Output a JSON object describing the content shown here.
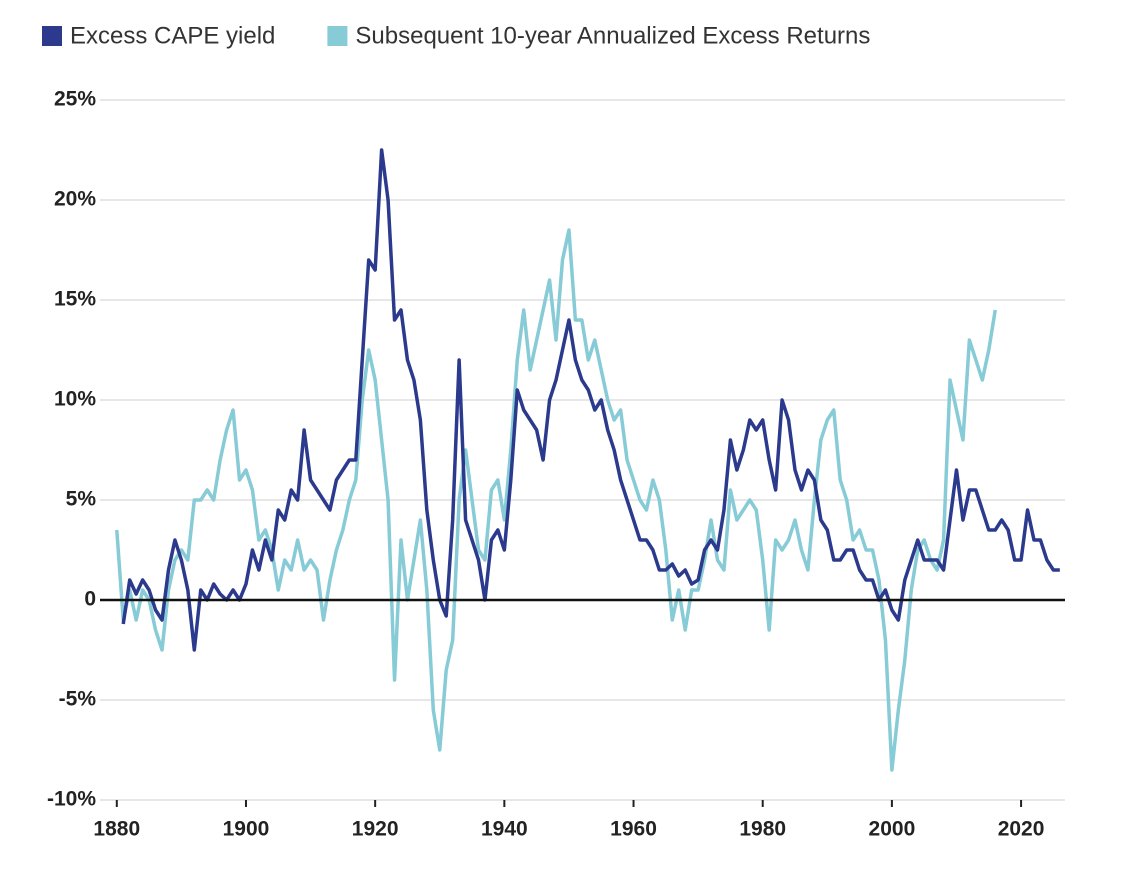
{
  "chart_data": {
    "type": "line",
    "x": [
      1880,
      1881,
      1882,
      1883,
      1884,
      1885,
      1886,
      1887,
      1888,
      1889,
      1890,
      1891,
      1892,
      1893,
      1894,
      1895,
      1896,
      1897,
      1898,
      1899,
      1900,
      1901,
      1902,
      1903,
      1904,
      1905,
      1906,
      1907,
      1908,
      1909,
      1910,
      1911,
      1912,
      1913,
      1914,
      1915,
      1916,
      1917,
      1918,
      1919,
      1920,
      1921,
      1922,
      1923,
      1924,
      1925,
      1926,
      1927,
      1928,
      1929,
      1930,
      1931,
      1932,
      1933,
      1934,
      1935,
      1936,
      1937,
      1938,
      1939,
      1940,
      1941,
      1942,
      1943,
      1944,
      1945,
      1946,
      1947,
      1948,
      1949,
      1950,
      1951,
      1952,
      1953,
      1954,
      1955,
      1956,
      1957,
      1958,
      1959,
      1960,
      1961,
      1962,
      1963,
      1964,
      1965,
      1966,
      1967,
      1968,
      1969,
      1970,
      1971,
      1972,
      1973,
      1974,
      1975,
      1976,
      1977,
      1978,
      1979,
      1980,
      1981,
      1982,
      1983,
      1984,
      1985,
      1986,
      1987,
      1988,
      1989,
      1990,
      1991,
      1992,
      1993,
      1994,
      1995,
      1996,
      1997,
      1998,
      1999,
      2000,
      2001,
      2002,
      2003,
      2004,
      2005,
      2006,
      2007,
      2008,
      2009,
      2010,
      2011,
      2012,
      2013,
      2014,
      2015,
      2016,
      2017,
      2018,
      2019,
      2020,
      2021,
      2022,
      2023,
      2024,
      2025,
      2026
    ],
    "series": [
      {
        "name": "Excess CAPE yield",
        "color": "#2b3a8c",
        "values": [
          null,
          -1.2,
          1.0,
          0.3,
          1.0,
          0.5,
          -0.5,
          -1.0,
          1.5,
          3.0,
          2.0,
          0.5,
          -2.5,
          0.5,
          0.0,
          0.8,
          0.3,
          0.0,
          0.5,
          0.0,
          0.8,
          2.5,
          1.5,
          3.0,
          2.0,
          4.5,
          4.0,
          5.5,
          5.0,
          8.5,
          6.0,
          5.5,
          5.0,
          4.5,
          6.0,
          6.5,
          7.0,
          7.0,
          12.0,
          17.0,
          16.5,
          22.5,
          20.0,
          14.0,
          14.5,
          12.0,
          11.0,
          9.0,
          4.5,
          2.0,
          0.0,
          -0.8,
          4.0,
          12.0,
          4.0,
          3.0,
          2.0,
          0.0,
          3.0,
          3.5,
          2.5,
          6.0,
          10.5,
          9.5,
          9.0,
          8.5,
          7.0,
          10.0,
          11.0,
          12.5,
          14.0,
          12.0,
          11.0,
          10.5,
          9.5,
          10.0,
          8.5,
          7.5,
          6.0,
          5.0,
          4.0,
          3.0,
          3.0,
          2.5,
          1.5,
          1.5,
          1.8,
          1.2,
          1.5,
          0.8,
          1.0,
          2.5,
          3.0,
          2.5,
          4.5,
          8.0,
          6.5,
          7.5,
          9.0,
          8.5,
          9.0,
          7.0,
          5.5,
          10.0,
          9.0,
          6.5,
          5.5,
          6.5,
          6.0,
          4.0,
          3.5,
          2.0,
          2.0,
          2.5,
          2.5,
          1.5,
          1.0,
          1.0,
          0.0,
          0.5,
          -0.5,
          -1.0,
          1.0,
          2.0,
          3.0,
          2.0,
          2.0,
          2.0,
          1.5,
          4.0,
          6.5,
          4.0,
          5.5,
          5.5,
          4.5,
          3.5,
          3.5,
          4.0,
          3.5,
          2.0,
          2.0,
          4.5,
          3.0,
          3.0,
          2.0,
          1.5,
          1.5
        ]
      },
      {
        "name": "Subsequent 10-year Annualized Excess Returns",
        "color": "#86cbd6",
        "values": [
          3.5,
          -1.0,
          0.5,
          -1.0,
          0.5,
          0.0,
          -1.5,
          -2.5,
          0.5,
          2.0,
          2.5,
          2.0,
          5.0,
          5.0,
          5.5,
          5.0,
          7.0,
          8.5,
          9.5,
          6.0,
          6.5,
          5.5,
          3.0,
          3.5,
          2.5,
          0.5,
          2.0,
          1.5,
          3.0,
          1.5,
          2.0,
          1.5,
          -1.0,
          1.0,
          2.5,
          3.5,
          5.0,
          6.0,
          10.0,
          12.5,
          11.0,
          8.0,
          5.0,
          -4.0,
          3.0,
          0.0,
          2.0,
          4.0,
          0.5,
          -5.5,
          -7.5,
          -3.5,
          -2.0,
          5.0,
          7.5,
          5.0,
          2.5,
          2.0,
          5.5,
          6.0,
          4.0,
          7.5,
          12.0,
          14.5,
          11.5,
          13.0,
          14.5,
          16.0,
          13.0,
          17.0,
          18.5,
          14.0,
          14.0,
          12.0,
          13.0,
          11.5,
          10.0,
          9.0,
          9.5,
          7.0,
          6.0,
          5.0,
          4.5,
          6.0,
          5.0,
          2.5,
          -1.0,
          0.5,
          -1.5,
          0.5,
          0.5,
          2.0,
          4.0,
          2.0,
          1.5,
          5.5,
          4.0,
          4.5,
          5.0,
          4.5,
          2.0,
          -1.5,
          3.0,
          2.5,
          3.0,
          4.0,
          2.5,
          1.5,
          5.0,
          8.0,
          9.0,
          9.5,
          6.0,
          5.0,
          3.0,
          3.5,
          2.5,
          2.5,
          1.0,
          -2.0,
          -8.5,
          -5.5,
          -3.0,
          0.5,
          2.5,
          3.0,
          2.0,
          1.5,
          3.0,
          11.0,
          9.5,
          8.0,
          13.0,
          12.0,
          11.0,
          12.5,
          14.5,
          null,
          null,
          null,
          null,
          null,
          null,
          null,
          null,
          null,
          null
        ]
      }
    ],
    "xlim": [
      1877.4,
      2026.8
    ],
    "xticks": [
      1880,
      1900,
      1920,
      1940,
      1960,
      1980,
      2000,
      2020
    ],
    "ylim": [
      -10,
      25
    ],
    "yticks": [
      {
        "value": -10,
        "label": "-10%"
      },
      {
        "value": -5,
        "label": "-5%"
      },
      0,
      {
        "value": 5,
        "label": "5%"
      },
      {
        "value": 10,
        "label": "10%"
      },
      {
        "value": 15,
        "label": "15%"
      },
      {
        "value": 20,
        "label": "20%"
      },
      {
        "value": 25,
        "label": "25%"
      }
    ],
    "grid": true
  }
}
